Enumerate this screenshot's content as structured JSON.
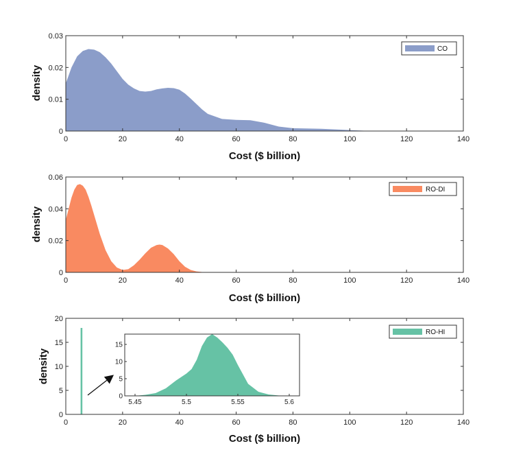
{
  "chart_data": [
    {
      "type": "area",
      "title": "",
      "xlabel": "Cost ($ billion)",
      "ylabel": "density",
      "xlim": [
        0,
        140
      ],
      "ylim": [
        0,
        0.03
      ],
      "xticks": [
        "0",
        "20",
        "40",
        "60",
        "80",
        "100",
        "120",
        "140"
      ],
      "yticks": [
        "0",
        "0.01",
        "0.02",
        "0.03"
      ],
      "legend": "CO",
      "legend_position": "top-right",
      "color": "#8b9dc9",
      "series": [
        {
          "name": "CO",
          "x": [
            0,
            2,
            4,
            6,
            8,
            10,
            12,
            14,
            16,
            18,
            20,
            22,
            24,
            26,
            28,
            30,
            32,
            34,
            36,
            38,
            40,
            42,
            44,
            46,
            48,
            50,
            55,
            60,
            65,
            70,
            75,
            80,
            90,
            100,
            105,
            108
          ],
          "y": [
            0.015,
            0.02,
            0.0235,
            0.0252,
            0.0258,
            0.0256,
            0.0248,
            0.0232,
            0.0212,
            0.0188,
            0.0164,
            0.0146,
            0.0134,
            0.0126,
            0.0124,
            0.0126,
            0.0131,
            0.0134,
            0.0136,
            0.0135,
            0.013,
            0.0118,
            0.0102,
            0.0085,
            0.0068,
            0.0054,
            0.0038,
            0.0035,
            0.0034,
            0.0026,
            0.0014,
            0.0009,
            0.0007,
            0.0003,
            0.0001,
            0
          ]
        }
      ]
    },
    {
      "type": "area",
      "title": "",
      "xlabel": "Cost ($ billion)",
      "ylabel": "density",
      "xlim": [
        0,
        140
      ],
      "ylim": [
        0,
        0.06
      ],
      "xticks": [
        "0",
        "20",
        "40",
        "60",
        "80",
        "100",
        "120",
        "140"
      ],
      "yticks": [
        "0",
        "0.02",
        "0.04",
        "0.06"
      ],
      "legend": "RO-DI",
      "legend_position": "top-right",
      "color": "#f98a61",
      "series": [
        {
          "name": "RO-DI",
          "x": [
            0,
            1,
            2,
            3,
            4,
            5,
            6,
            7,
            8,
            9,
            10,
            12,
            14,
            16,
            18,
            20,
            22,
            24,
            26,
            28,
            30,
            32,
            33,
            34,
            36,
            38,
            40,
            42,
            44,
            46,
            48,
            50
          ],
          "y": [
            0.033,
            0.04,
            0.047,
            0.052,
            0.055,
            0.0555,
            0.0545,
            0.052,
            0.0475,
            0.042,
            0.036,
            0.024,
            0.014,
            0.007,
            0.003,
            0.0015,
            0.002,
            0.0045,
            0.008,
            0.012,
            0.0155,
            0.0172,
            0.0175,
            0.0172,
            0.015,
            0.0115,
            0.007,
            0.0035,
            0.0015,
            0.0006,
            0.0002,
            0
          ]
        }
      ]
    },
    {
      "type": "area",
      "title": "",
      "xlabel": "Cost ($ billion)",
      "ylabel": "density",
      "xlim": [
        0,
        140
      ],
      "ylim": [
        0,
        20
      ],
      "xticks": [
        "0",
        "20",
        "40",
        "60",
        "80",
        "100",
        "120",
        "140"
      ],
      "yticks": [
        "0",
        "5",
        "10",
        "15",
        "20"
      ],
      "legend": "RO-HI",
      "legend_position": "top-right",
      "color": "#66c2a5",
      "series": [
        {
          "name": "RO-HI",
          "x": [
            5.45,
            5.46,
            5.47,
            5.48,
            5.49,
            5.5,
            5.505,
            5.51,
            5.515,
            5.52,
            5.525,
            5.53,
            5.535,
            5.54,
            5.545,
            5.55,
            5.56,
            5.57,
            5.58,
            5.59,
            5.6
          ],
          "y": [
            0,
            0.3,
            0.8,
            2.2,
            4.5,
            6.5,
            7.8,
            10.5,
            14.5,
            17.0,
            18.0,
            17.0,
            15.6,
            14.0,
            12.0,
            9.0,
            3.5,
            1.2,
            0.4,
            0.1,
            0
          ]
        }
      ],
      "inset": {
        "xlim": [
          5.44,
          5.61
        ],
        "ylim": [
          0,
          18
        ],
        "xticks": [
          "5.45",
          "5.5",
          "5.55",
          "5.6"
        ],
        "yticks": [
          "0",
          "5",
          "10",
          "15"
        ]
      }
    }
  ]
}
